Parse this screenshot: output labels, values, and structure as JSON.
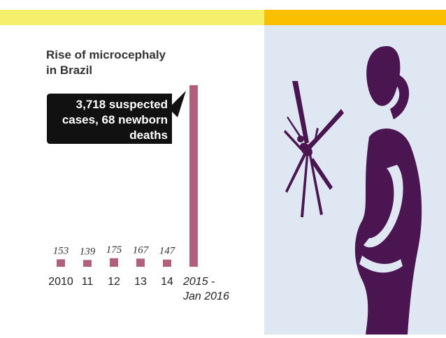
{
  "colors": {
    "top_bar_left": "#f5f06a",
    "top_bar_right": "#fbbf00",
    "panel_bg": "#dfe7f3",
    "bar": "#b0607c",
    "callout_bg": "#111111",
    "illustration": "#4a1551"
  },
  "chart_data": {
    "type": "bar",
    "title": [
      "Rise of microcephaly",
      "in Brazil"
    ],
    "categories": [
      "2010",
      "11",
      "12",
      "13",
      "14",
      "2015 - Jan 2016"
    ],
    "category_lines": [
      [
        "2010"
      ],
      [
        "11"
      ],
      [
        "12"
      ],
      [
        "13"
      ],
      [
        "14"
      ],
      [
        "2015 -",
        "Jan 2016"
      ]
    ],
    "values": [
      153,
      139,
      175,
      167,
      147,
      3718
    ],
    "data_labels": [
      "153",
      "139",
      "175",
      "167",
      "147",
      ""
    ],
    "annotation": [
      "3,718 suspected",
      "cases, 68 newborn",
      "deaths"
    ],
    "ylim": [
      0,
      3718
    ],
    "xlabel": "",
    "ylabel": "",
    "grid": false
  },
  "illustration": {
    "icons": [
      "mosquito-icon",
      "pregnant-woman-icon"
    ]
  }
}
